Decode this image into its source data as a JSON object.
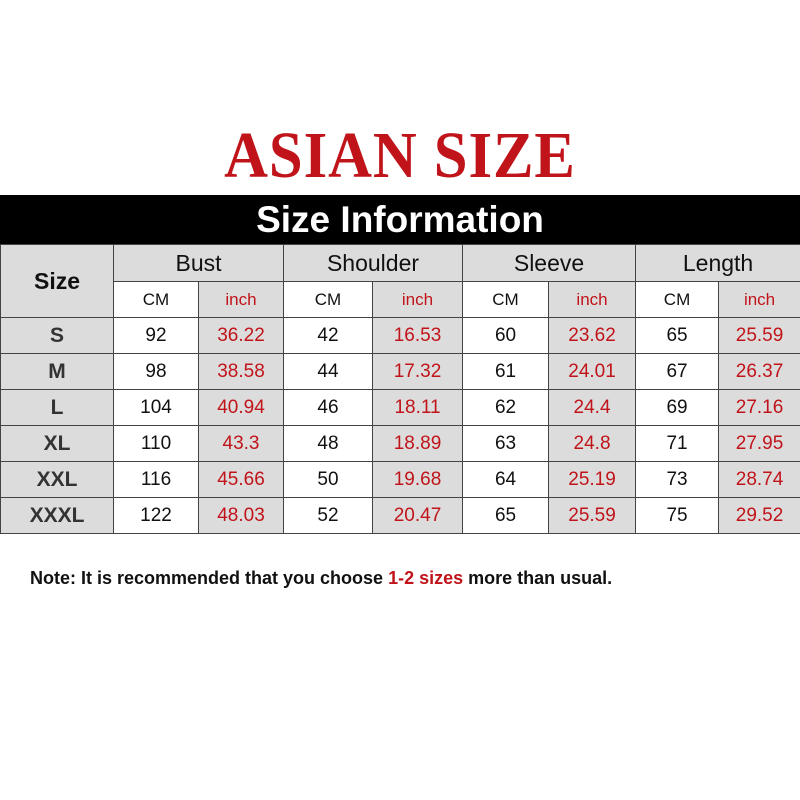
{
  "title": "ASIAN SIZE",
  "banner": "Size Information",
  "header": {
    "size": "Size",
    "groups": [
      "Bust",
      "Shoulder",
      "Sleeve",
      "Length"
    ],
    "units": [
      "CM",
      "inch"
    ]
  },
  "rows": [
    [
      "S",
      "92",
      "36.22",
      "42",
      "16.53",
      "60",
      "23.62",
      "65",
      "25.59"
    ],
    [
      "M",
      "98",
      "38.58",
      "44",
      "17.32",
      "61",
      "24.01",
      "67",
      "26.37"
    ],
    [
      "L",
      "104",
      "40.94",
      "46",
      "18.11",
      "62",
      "24.4",
      "69",
      "27.16"
    ],
    [
      "XL",
      "110",
      "43.3",
      "48",
      "18.89",
      "63",
      "24.8",
      "71",
      "27.95"
    ],
    [
      "XXL",
      "116",
      "45.66",
      "50",
      "19.68",
      "64",
      "25.19",
      "73",
      "28.74"
    ],
    [
      "XXXL",
      "122",
      "48.03",
      "52",
      "20.47",
      "65",
      "25.59",
      "75",
      "29.52"
    ]
  ],
  "note": {
    "prefix": "Note: It is recommended that you choose ",
    "highlight": "1-2 sizes",
    "suffix": " more than usual."
  },
  "colors": {
    "accent": "#c0141a",
    "header_bg": "#dcdcdc",
    "banner_bg": "#000000"
  }
}
